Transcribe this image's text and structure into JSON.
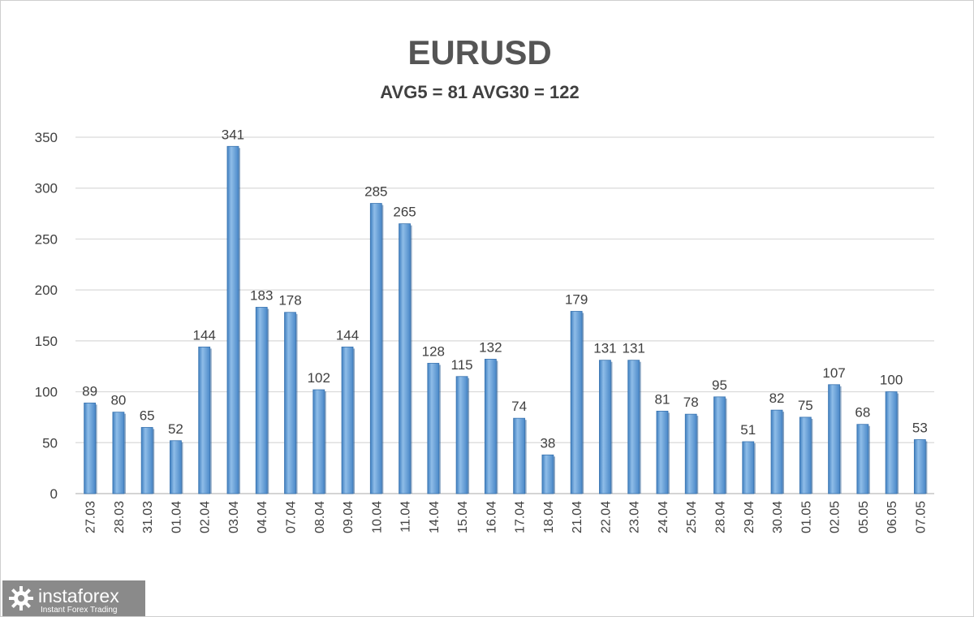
{
  "chart_data": {
    "type": "bar",
    "title": "EURUSD",
    "subtitle": "AVG5 = 81 AVG30 = 122",
    "xlabel": "",
    "ylabel": "",
    "ylim": [
      0,
      350
    ],
    "yticks": [
      "0",
      "50",
      "100",
      "150",
      "200",
      "250",
      "300",
      "350"
    ],
    "grid": true,
    "legend": "none",
    "bar_color": "#5b9bd5",
    "categories": [
      "27.03",
      "28.03",
      "31.03",
      "01.04",
      "02.04",
      "03.04",
      "04.04",
      "07.04",
      "08.04",
      "09.04",
      "10.04",
      "11.04",
      "14.04",
      "15.04",
      "16.04",
      "17.04",
      "18.04",
      "21.04",
      "22.04",
      "23.04",
      "24.04",
      "25.04",
      "28.04",
      "29.04",
      "30.04",
      "01.05",
      "02.05",
      "05.05",
      "06.05",
      "07.05"
    ],
    "values": [
      89,
      80,
      65,
      52,
      144,
      341,
      183,
      178,
      102,
      144,
      285,
      265,
      128,
      115,
      132,
      74,
      38,
      179,
      131,
      131,
      81,
      78,
      95,
      51,
      82,
      75,
      107,
      68,
      100,
      53
    ]
  },
  "logo": {
    "name": "instaforex",
    "tagline": "Instant Forex Trading",
    "icon": "gear-icon"
  }
}
